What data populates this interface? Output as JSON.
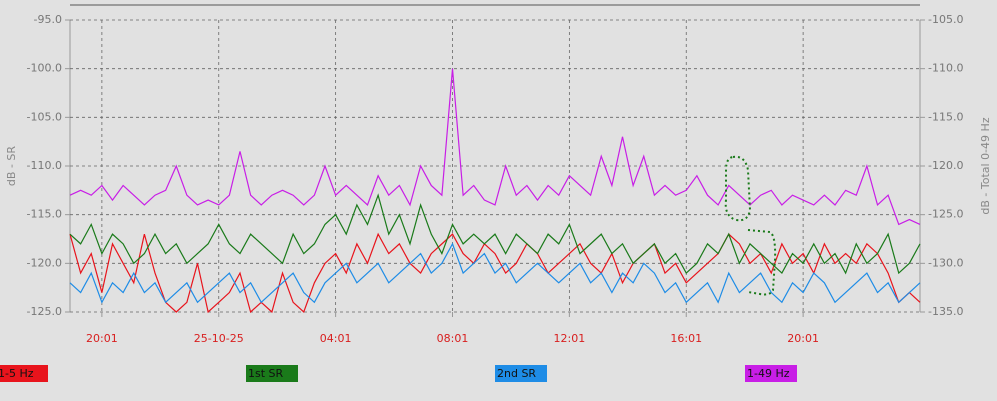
{
  "chart_data": {
    "type": "line",
    "y_label": "dB - SR",
    "y2_label": "dB - Total 0-49 Hz",
    "categories": [
      null,
      null,
      null,
      "20:01",
      null,
      null,
      null,
      null,
      null,
      null,
      null,
      null,
      null,
      null,
      "25-10-25",
      null,
      null,
      null,
      null,
      null,
      null,
      null,
      null,
      null,
      null,
      "04:01",
      null,
      null,
      null,
      null,
      null,
      null,
      null,
      null,
      null,
      null,
      "08:01",
      null,
      null,
      null,
      null,
      null,
      null,
      null,
      null,
      null,
      null,
      "12:01",
      null,
      null,
      null,
      null,
      null,
      null,
      null,
      null,
      null,
      null,
      "16:01",
      null,
      null,
      null,
      null,
      null,
      null,
      null,
      null,
      null,
      null,
      "20:01",
      null,
      null,
      null,
      null,
      null,
      null,
      null,
      null,
      null,
      null,
      null
    ],
    "series": [
      {
        "name": "1-5 Hz",
        "color": "#e8141c",
        "values": [
          -117,
          -121,
          -119,
          -123,
          -118,
          -120,
          -122,
          -117,
          -121,
          -124,
          -125,
          -124,
          -120,
          -125,
          -124,
          -123,
          -121,
          -125,
          -124,
          -125,
          -121,
          -124,
          -125,
          -122,
          -120,
          -119,
          -121,
          -118,
          -120,
          -117,
          -119,
          -118,
          -120,
          -121,
          -119,
          -118,
          -117,
          -119,
          -120,
          -118,
          -119,
          -121,
          -120,
          -118,
          -119,
          -121,
          -120,
          -119,
          -118,
          -120,
          -121,
          -119,
          -122,
          -120,
          -119,
          -118,
          -121,
          -120,
          -122,
          -121,
          -120,
          -119,
          -117,
          -118,
          -120,
          -119,
          -121,
          -118,
          -120,
          -119,
          -121,
          -118,
          -120,
          -119,
          -120,
          -118,
          -119,
          -121,
          -124,
          -123,
          -124
        ]
      },
      {
        "name": "1st SR",
        "color": "#1a7a1a",
        "values": [
          -117,
          -118,
          -116,
          -119,
          -117,
          -118,
          -120,
          -119,
          -117,
          -119,
          -118,
          -120,
          -119,
          -118,
          -116,
          -118,
          -119,
          -117,
          -118,
          -119,
          -120,
          -117,
          -119,
          -118,
          -116,
          -115,
          -117,
          -114,
          -116,
          -113,
          -117,
          -115,
          -118,
          -114,
          -117,
          -119,
          -116,
          -118,
          -117,
          -118,
          -117,
          -119,
          -117,
          -118,
          -119,
          -117,
          -118,
          -116,
          -119,
          -118,
          -117,
          -119,
          -118,
          -120,
          -119,
          -118,
          -120,
          -119,
          -121,
          -120,
          -118,
          -119,
          -117,
          -120,
          -118,
          -119,
          -120,
          -121,
          -119,
          -120,
          -118,
          -120,
          -119,
          -121,
          -118,
          -120,
          -119,
          -117,
          -121,
          -120,
          -118
        ]
      },
      {
        "name": "2nd SR",
        "color": "#1e8ce6",
        "values": [
          -122,
          -123,
          -121,
          -124,
          -122,
          -123,
          -121,
          -123,
          -122,
          -124,
          -123,
          -122,
          -124,
          -123,
          -122,
          -121,
          -123,
          -122,
          -124,
          -123,
          -122,
          -121,
          -123,
          -124,
          -122,
          -121,
          -120,
          -122,
          -121,
          -120,
          -122,
          -121,
          -120,
          -119,
          -121,
          -120,
          -118,
          -121,
          -120,
          -119,
          -121,
          -120,
          -122,
          -121,
          -120,
          -121,
          -122,
          -121,
          -120,
          -122,
          -121,
          -123,
          -121,
          -122,
          -120,
          -121,
          -123,
          -122,
          -124,
          -123,
          -122,
          -124,
          -121,
          -123,
          -122,
          -121,
          -123,
          -124,
          -122,
          -123,
          -121,
          -122,
          -124,
          -123,
          -122,
          -121,
          -123,
          -122,
          -124,
          -123,
          -122
        ]
      },
      {
        "name": "1-49 Hz",
        "color": "#c81ee6",
        "axis": "y2",
        "values": [
          -123,
          -122.5,
          -123,
          -122,
          -123.5,
          -122,
          -123,
          -124,
          -123,
          -122.5,
          -120,
          -123,
          -124,
          -123.5,
          -124,
          -123,
          -118.5,
          -123,
          -124,
          -123,
          -122.5,
          -123,
          -124,
          -123,
          -120,
          -123,
          -122,
          -123,
          -124,
          -121,
          -123,
          -122,
          -124,
          -120,
          -122,
          -123,
          -110,
          -123,
          -122,
          -123.5,
          -124,
          -120,
          -123,
          -122,
          -123.5,
          -122,
          -123,
          -121,
          -122,
          -123,
          -119,
          -122,
          -117,
          -122,
          -119,
          -123,
          -122,
          -123,
          -122.5,
          -121,
          -123,
          -124,
          -122,
          -123,
          -124,
          -123,
          -122.5,
          -124,
          -123,
          -123.5,
          -124,
          -123,
          -124,
          -122.5,
          -123,
          -120,
          -124,
          -123,
          -126,
          -125.5,
          -126
        ]
      }
    ],
    "ylim": [
      -125,
      -95
    ],
    "yticks": [
      {
        "value": -125,
        "label": "-125.0"
      },
      {
        "value": -120,
        "label": "-120.0"
      },
      {
        "value": -115,
        "label": "-115.0"
      },
      {
        "value": -110,
        "label": "-110.0"
      },
      {
        "value": -105,
        "label": "-105.0"
      },
      {
        "value": -100,
        "label": "-100.0"
      },
      {
        "value": -95,
        "label": "-95.0"
      }
    ],
    "y2lim": [
      -135,
      -105
    ],
    "y2ticks": [
      {
        "value": -135,
        "label": "-135.0"
      },
      {
        "value": -130,
        "label": "-130.0"
      },
      {
        "value": -125,
        "label": "-125.0"
      },
      {
        "value": -120,
        "label": "-120.0"
      },
      {
        "value": -115,
        "label": "-115.0"
      },
      {
        "value": -110,
        "label": "-110.0"
      },
      {
        "value": -105,
        "label": "-105.0"
      }
    ],
    "grid": true,
    "legend": "bottom"
  }
}
